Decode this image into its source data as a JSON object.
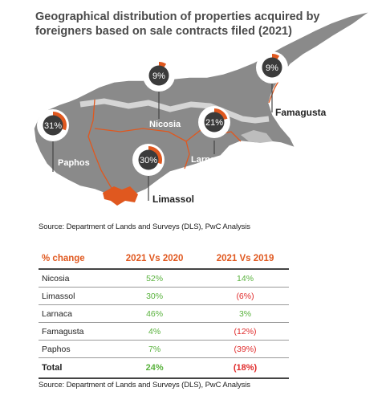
{
  "title": "Geographical distribution of properties acquired by foreigners based on sale contracts filed (2021)",
  "source_top": "Source: Department of Lands and Surveys (DLS), PwC Analysis",
  "source_bottom": "Source: Department of Lands and Surveys (DLS), PwC Analysis",
  "colors": {
    "accent": "#e0581f",
    "map_gray": "#8a8a8a",
    "positive": "#59b23d",
    "negative": "#e02b2b"
  },
  "chart_data": [
    {
      "type": "pie",
      "title": "Geographical distribution of properties acquired by foreigners based on sale contracts filed (2021)",
      "categories": [
        "Paphos",
        "Nicosia",
        "Limassol",
        "Larnaca",
        "Famagusta"
      ],
      "values": [
        31,
        9,
        30,
        21,
        9
      ],
      "labels": [
        "31%",
        "9%",
        "30%",
        "21%",
        "9%"
      ]
    },
    {
      "type": "table",
      "columns": [
        "% change",
        "2021 Vs 2020",
        "2021 Vs 2019"
      ],
      "rows": [
        {
          "region": "Nicosia",
          "vs2020": "52%",
          "vs2019": "14%",
          "s2020": "pos",
          "s2019": "pos"
        },
        {
          "region": "Limassol",
          "vs2020": "30%",
          "vs2019": "(6%)",
          "s2020": "pos",
          "s2019": "neg"
        },
        {
          "region": "Larnaca",
          "vs2020": "46%",
          "vs2019": "3%",
          "s2020": "pos",
          "s2019": "pos"
        },
        {
          "region": "Famagusta",
          "vs2020": "4%",
          "vs2019": "(12%)",
          "s2020": "pos",
          "s2019": "neg"
        },
        {
          "region": "Paphos",
          "vs2020": "7%",
          "vs2019": "(39%)",
          "s2020": "pos",
          "s2019": "neg"
        }
      ],
      "total": {
        "region": "Total",
        "vs2020": "24%",
        "vs2019": "(18%)"
      }
    }
  ]
}
